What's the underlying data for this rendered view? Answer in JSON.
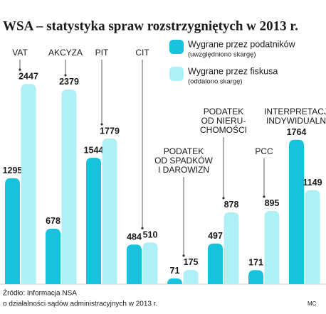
{
  "chart_data": {
    "type": "bar",
    "title": "WSA – statystyka spraw rozstrzygniętych w 2013 r.",
    "categories": [
      "VAT",
      "AKCYZA",
      "PIT",
      "CIT",
      "PODATEK\nOD SPADKÓW\nI DAROWIZN",
      "PODATEK\nOD NIERU-\nCHOMOŚCI",
      "PCC",
      "INTERPRETACJE\nINDYWIDUALNE"
    ],
    "series": [
      {
        "name": "Wygrane przez podatników",
        "note": "(uwzględniono skargę)",
        "color": "#17c3dc",
        "values": [
          1295,
          678,
          1544,
          484,
          71,
          497,
          171,
          1764
        ]
      },
      {
        "name": "Wygrane przez fiskusa",
        "note": "(oddalono skargę)",
        "color": "#aef0f6",
        "values": [
          2447,
          2379,
          1779,
          510,
          175,
          878,
          895,
          1149
        ]
      }
    ],
    "source": [
      "Źródło: Informacja NSA",
      "o działalności sądów administracyjnych w 2013 r."
    ],
    "credit": "MC"
  }
}
